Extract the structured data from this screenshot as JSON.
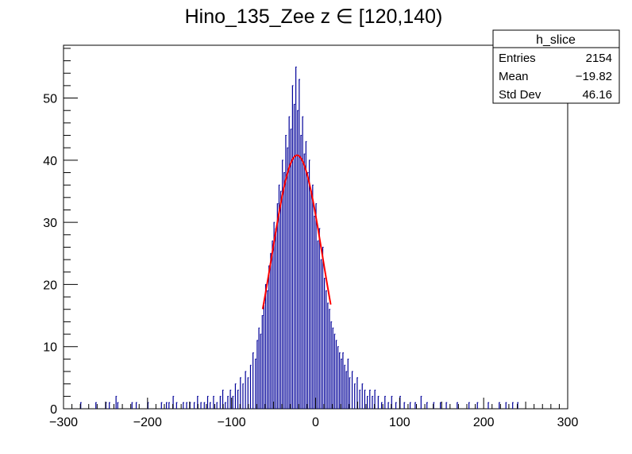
{
  "chart_data": {
    "type": "bar",
    "title": "Hino_135_Zee z  ∈ [120,140)",
    "xlabel": "",
    "ylabel": "",
    "xlim": [
      -300,
      300
    ],
    "ylim": [
      0,
      58.5
    ],
    "x_ticks": [
      -300,
      -200,
      -100,
      0,
      100,
      200,
      300
    ],
    "x_tick_labels": [
      "−300",
      "−200",
      "−100",
      "0",
      "100",
      "200",
      "300"
    ],
    "y_ticks": [
      0,
      10,
      20,
      30,
      40,
      50
    ],
    "y_tick_labels": [
      "0",
      "10",
      "20",
      "30",
      "40",
      "50"
    ],
    "grid": false,
    "histogram": {
      "name": "h_slice",
      "color": "#000099",
      "bin_width": 1,
      "bins": [
        {
          "x": -280,
          "y": 1
        },
        {
          "x": -262,
          "y": 1
        },
        {
          "x": -250,
          "y": 1
        },
        {
          "x": -246,
          "y": 1
        },
        {
          "x": -238,
          "y": 2
        },
        {
          "x": -236,
          "y": 1
        },
        {
          "x": -219,
          "y": 1
        },
        {
          "x": -214,
          "y": 1
        },
        {
          "x": -200,
          "y": 1
        },
        {
          "x": -184,
          "y": 1
        },
        {
          "x": -178,
          "y": 1
        },
        {
          "x": -175,
          "y": 1
        },
        {
          "x": -170,
          "y": 2
        },
        {
          "x": -166,
          "y": 1
        },
        {
          "x": -158,
          "y": 1
        },
        {
          "x": -154,
          "y": 1
        },
        {
          "x": -150,
          "y": 1
        },
        {
          "x": -145,
          "y": 1
        },
        {
          "x": -141,
          "y": 2
        },
        {
          "x": -137,
          "y": 1
        },
        {
          "x": -133,
          "y": 1
        },
        {
          "x": -129,
          "y": 2
        },
        {
          "x": -126,
          "y": 1
        },
        {
          "x": -122,
          "y": 2
        },
        {
          "x": -118,
          "y": 1
        },
        {
          "x": -114,
          "y": 2
        },
        {
          "x": -111,
          "y": 3
        },
        {
          "x": -108,
          "y": 1
        },
        {
          "x": -105,
          "y": 2
        },
        {
          "x": -102,
          "y": 3
        },
        {
          "x": -99,
          "y": 2
        },
        {
          "x": -96,
          "y": 4
        },
        {
          "x": -93,
          "y": 3
        },
        {
          "x": -90,
          "y": 5
        },
        {
          "x": -87,
          "y": 4
        },
        {
          "x": -84,
          "y": 6
        },
        {
          "x": -81,
          "y": 5
        },
        {
          "x": -78,
          "y": 7
        },
        {
          "x": -75,
          "y": 9
        },
        {
          "x": -72,
          "y": 8
        },
        {
          "x": -70,
          "y": 11
        },
        {
          "x": -68,
          "y": 13
        },
        {
          "x": -66,
          "y": 12
        },
        {
          "x": -64,
          "y": 15
        },
        {
          "x": -62,
          "y": 17
        },
        {
          "x": -60,
          "y": 20
        },
        {
          "x": -58,
          "y": 19
        },
        {
          "x": -56,
          "y": 23
        },
        {
          "x": -54,
          "y": 25
        },
        {
          "x": -52,
          "y": 27
        },
        {
          "x": -50,
          "y": 30
        },
        {
          "x": -48,
          "y": 29
        },
        {
          "x": -46,
          "y": 33
        },
        {
          "x": -44,
          "y": 36
        },
        {
          "x": -42,
          "y": 35
        },
        {
          "x": -40,
          "y": 40
        },
        {
          "x": -38,
          "y": 38
        },
        {
          "x": -36,
          "y": 44
        },
        {
          "x": -34,
          "y": 42
        },
        {
          "x": -32,
          "y": 47
        },
        {
          "x": -30,
          "y": 45
        },
        {
          "x": -28,
          "y": 52
        },
        {
          "x": -26,
          "y": 49
        },
        {
          "x": -24,
          "y": 55
        },
        {
          "x": -22,
          "y": 48
        },
        {
          "x": -20,
          "y": 53
        },
        {
          "x": -18,
          "y": 44
        },
        {
          "x": -16,
          "y": 47
        },
        {
          "x": -14,
          "y": 41
        },
        {
          "x": -12,
          "y": 43
        },
        {
          "x": -10,
          "y": 38
        },
        {
          "x": -8,
          "y": 40
        },
        {
          "x": -6,
          "y": 35
        },
        {
          "x": -4,
          "y": 36
        },
        {
          "x": -2,
          "y": 31
        },
        {
          "x": 0,
          "y": 33
        },
        {
          "x": 2,
          "y": 27
        },
        {
          "x": 4,
          "y": 29
        },
        {
          "x": 6,
          "y": 24
        },
        {
          "x": 8,
          "y": 26
        },
        {
          "x": 10,
          "y": 21
        },
        {
          "x": 12,
          "y": 19
        },
        {
          "x": 14,
          "y": 17
        },
        {
          "x": 16,
          "y": 16
        },
        {
          "x": 18,
          "y": 14
        },
        {
          "x": 20,
          "y": 13
        },
        {
          "x": 22,
          "y": 12
        },
        {
          "x": 24,
          "y": 11
        },
        {
          "x": 26,
          "y": 10
        },
        {
          "x": 28,
          "y": 9
        },
        {
          "x": 30,
          "y": 8
        },
        {
          "x": 32,
          "y": 9
        },
        {
          "x": 34,
          "y": 7
        },
        {
          "x": 36,
          "y": 6
        },
        {
          "x": 38,
          "y": 8
        },
        {
          "x": 40,
          "y": 5
        },
        {
          "x": 43,
          "y": 6
        },
        {
          "x": 46,
          "y": 4
        },
        {
          "x": 49,
          "y": 5
        },
        {
          "x": 52,
          "y": 3
        },
        {
          "x": 55,
          "y": 4
        },
        {
          "x": 58,
          "y": 3
        },
        {
          "x": 61,
          "y": 2
        },
        {
          "x": 64,
          "y": 3
        },
        {
          "x": 67,
          "y": 2
        },
        {
          "x": 70,
          "y": 3
        },
        {
          "x": 74,
          "y": 2
        },
        {
          "x": 78,
          "y": 1
        },
        {
          "x": 82,
          "y": 2
        },
        {
          "x": 86,
          "y": 1
        },
        {
          "x": 90,
          "y": 2
        },
        {
          "x": 95,
          "y": 1
        },
        {
          "x": 100,
          "y": 2
        },
        {
          "x": 105,
          "y": 1
        },
        {
          "x": 112,
          "y": 1
        },
        {
          "x": 118,
          "y": 1
        },
        {
          "x": 125,
          "y": 2
        },
        {
          "x": 132,
          "y": 1
        },
        {
          "x": 140,
          "y": 1
        },
        {
          "x": 148,
          "y": 1
        },
        {
          "x": 155,
          "y": 1
        },
        {
          "x": 168,
          "y": 1
        },
        {
          "x": 182,
          "y": 1
        },
        {
          "x": 192,
          "y": 1
        },
        {
          "x": 205,
          "y": 1
        },
        {
          "x": 218,
          "y": 1
        },
        {
          "x": 226,
          "y": 1
        },
        {
          "x": 234,
          "y": 1
        },
        {
          "x": 240,
          "y": 1
        }
      ]
    },
    "fit": {
      "type": "gaussian",
      "color": "#ff0000",
      "amplitude": 40.8,
      "mean": -22,
      "sigma": 30,
      "x_range": [
        -63,
        18
      ]
    },
    "legend": {
      "placement": "top-right",
      "title": "h_slice",
      "rows": [
        {
          "label": "Entries",
          "value": "2154"
        },
        {
          "label": "Mean",
          "value": "−19.82"
        },
        {
          "label": "Std Dev",
          "value": "46.16"
        }
      ]
    }
  }
}
